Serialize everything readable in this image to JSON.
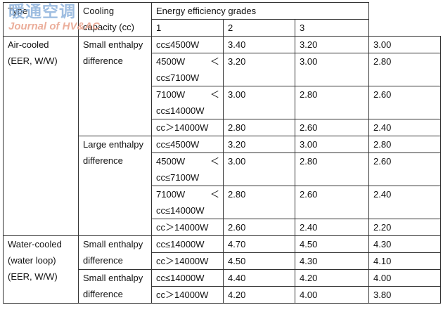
{
  "watermark": {
    "title": "暖通空调",
    "subtitle": "Journal of HV&AC"
  },
  "header": {
    "type": "Type",
    "capacity": "Cooling capacity (cc)",
    "grades_title": "Energy efficiency grades",
    "grades": [
      "1",
      "2",
      "3"
    ]
  },
  "groups": [
    {
      "type": "Air-cooled (EER, W/W)",
      "subgroups": [
        {
          "name": "Small enthalpy difference",
          "rows": [
            {
              "capacity": "cc≤4500W",
              "values": [
                "3.40",
                "3.20",
                "3.00"
              ]
            },
            {
              "capacity": "4500W ＜ cc≤7100W",
              "values": [
                "3.20",
                "3.00",
                "2.80"
              ]
            },
            {
              "capacity": "7100W ＜ cc≤14000W",
              "values": [
                "3.00",
                "2.80",
                "2.60"
              ]
            },
            {
              "capacity": "cc＞14000W",
              "values": [
                "2.80",
                "2.60",
                "2.40"
              ]
            }
          ]
        },
        {
          "name": "Large enthalpy difference",
          "rows": [
            {
              "capacity": "cc≤4500W",
              "values": [
                "3.20",
                "3.00",
                "2.80"
              ]
            },
            {
              "capacity": "4500W ＜ cc≤7100W",
              "values": [
                "3.00",
                "2.80",
                "2.60"
              ]
            },
            {
              "capacity": "7100W ＜ cc≤14000W",
              "values": [
                "2.80",
                "2.60",
                "2.40"
              ]
            },
            {
              "capacity": "cc＞14000W",
              "values": [
                "2.60",
                "2.40",
                "2.20"
              ]
            }
          ]
        }
      ]
    },
    {
      "type": "Water-cooled (water loop) (EER, W/W)",
      "subgroups": [
        {
          "name": "Small enthalpy difference",
          "rows": [
            {
              "capacity": "cc≤14000W",
              "values": [
                "4.70",
                "4.50",
                "4.30"
              ]
            },
            {
              "capacity": "cc＞14000W",
              "values": [
                "4.50",
                "4.30",
                "4.10"
              ]
            }
          ]
        },
        {
          "name": "Small enthalpy difference",
          "rows": [
            {
              "capacity": "cc≤14000W",
              "values": [
                "4.40",
                "4.20",
                "4.00"
              ]
            },
            {
              "capacity": "cc＞14000W",
              "values": [
                "4.20",
                "4.00",
                "3.80"
              ]
            }
          ]
        }
      ]
    }
  ]
}
